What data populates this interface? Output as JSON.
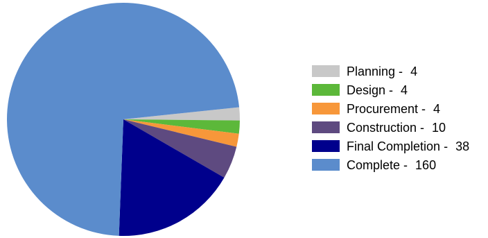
{
  "chart_data": {
    "type": "pie",
    "title": "",
    "legend_position": "right",
    "slices": [
      {
        "label": "Planning - ",
        "value": 4,
        "color": "#c8c8c8"
      },
      {
        "label": "Design - ",
        "value": 4,
        "color": "#5cb83a"
      },
      {
        "label": "Procurement - ",
        "value": 4,
        "color": "#f7973a"
      },
      {
        "label": "Construction - ",
        "value": 10,
        "color": "#5e4a80"
      },
      {
        "label": "Final Completion - ",
        "value": 38,
        "color": "#00008c"
      },
      {
        "label": "Complete - ",
        "value": 160,
        "color": "#5b8ccc"
      }
    ]
  }
}
